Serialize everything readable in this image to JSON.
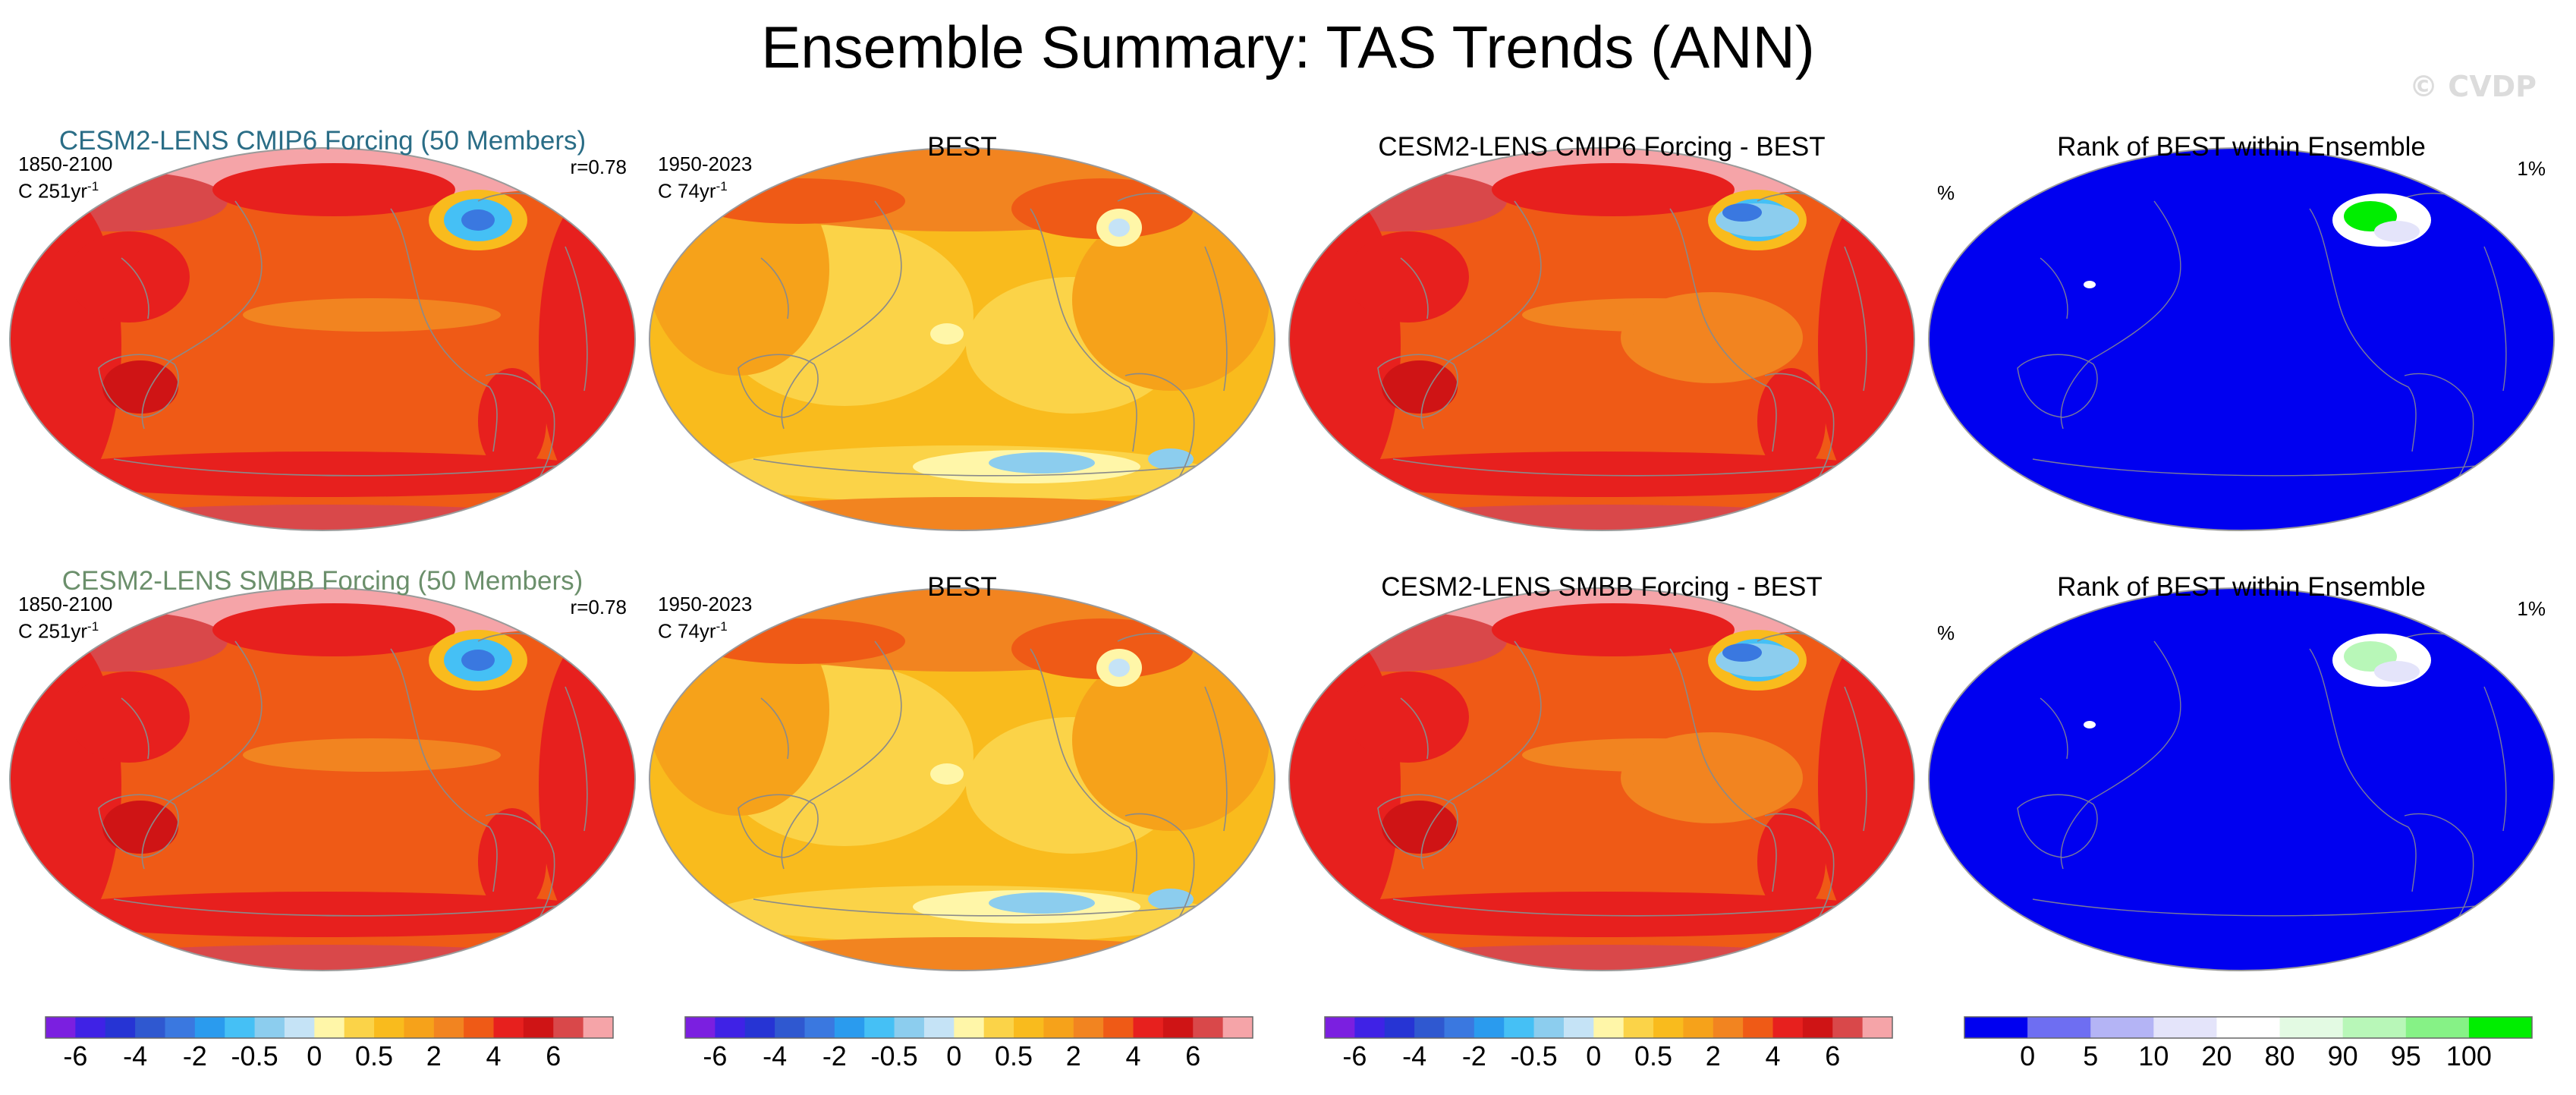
{
  "title": "Ensemble Summary: TAS Trends (ANN)",
  "watermark": "© CVDP",
  "chart_data": [
    {
      "type": "heatmap",
      "row": 1,
      "col": 1,
      "title": "CESM2-LENS CMIP6 Forcing (50 Members)",
      "title_color": "#2a6d86",
      "period": "1850-2100",
      "units_label": "C 251yr",
      "units_exp": "-1",
      "stat": "r=0.78",
      "scheme": "trend_model"
    },
    {
      "type": "heatmap",
      "row": 1,
      "col": 2,
      "title": "BEST",
      "title_color": "#000000",
      "period": "1950-2023",
      "units_label": "C 74yr",
      "units_exp": "-1",
      "stat": "",
      "scheme": "trend_obs"
    },
    {
      "type": "heatmap",
      "row": 1,
      "col": 3,
      "title": "CESM2-LENS CMIP6 Forcing - BEST",
      "title_color": "#000000",
      "period": "",
      "units_label": "",
      "units_exp": "",
      "stat": "",
      "scheme": "trend_diff"
    },
    {
      "type": "heatmap",
      "row": 1,
      "col": 4,
      "title": "Rank of BEST within Ensemble",
      "title_color": "#000000",
      "period": "%",
      "units_label": "",
      "units_exp": "",
      "stat": "1%",
      "scheme": "rank"
    },
    {
      "type": "heatmap",
      "row": 2,
      "col": 1,
      "title": "CESM2-LENS SMBB Forcing (50 Members)",
      "title_color": "#6b8f6b",
      "period": "1850-2100",
      "units_label": "C 251yr",
      "units_exp": "-1",
      "stat": "r=0.78",
      "scheme": "trend_model"
    },
    {
      "type": "heatmap",
      "row": 2,
      "col": 2,
      "title": "BEST",
      "title_color": "#000000",
      "period": "1950-2023",
      "units_label": "C 74yr",
      "units_exp": "-1",
      "stat": "",
      "scheme": "trend_obs"
    },
    {
      "type": "heatmap",
      "row": 2,
      "col": 3,
      "title": "CESM2-LENS SMBB Forcing - BEST",
      "title_color": "#000000",
      "period": "",
      "units_label": "",
      "units_exp": "",
      "stat": "",
      "scheme": "trend_diff"
    },
    {
      "type": "heatmap",
      "row": 2,
      "col": 4,
      "title": "Rank of BEST within Ensemble",
      "title_color": "#000000",
      "period": "%",
      "units_label": "",
      "units_exp": "",
      "stat": "1%",
      "scheme": "rank"
    }
  ],
  "colorbars": [
    {
      "colors": [
        "#7b1fe0",
        "#3f22e6",
        "#2634d4",
        "#2f58d0",
        "#3a78e0",
        "#2a9bee",
        "#45c0f5",
        "#8ccdee",
        "#c5e3f6",
        "#fff6a8",
        "#fbd348",
        "#f9bb1d",
        "#f6a21a",
        "#f28420",
        "#ef5a16",
        "#e7201e",
        "#cf1415",
        "#d9484a",
        "#f5a4a8"
      ],
      "tick_labels": [
        "-6",
        "-4",
        "-2",
        "-0.5",
        "0",
        "0.5",
        "2",
        "4",
        "6"
      ]
    },
    {
      "colors": [
        "#7b1fe0",
        "#3f22e6",
        "#2634d4",
        "#2f58d0",
        "#3a78e0",
        "#2a9bee",
        "#45c0f5",
        "#8ccdee",
        "#c5e3f6",
        "#fff6a8",
        "#fbd348",
        "#f9bb1d",
        "#f6a21a",
        "#f28420",
        "#ef5a16",
        "#e7201e",
        "#cf1415",
        "#d9484a",
        "#f5a4a8"
      ],
      "tick_labels": [
        "-6",
        "-4",
        "-2",
        "-0.5",
        "0",
        "0.5",
        "2",
        "4",
        "6"
      ]
    },
    {
      "colors": [
        "#7b1fe0",
        "#3f22e6",
        "#2634d4",
        "#2f58d0",
        "#3a78e0",
        "#2a9bee",
        "#45c0f5",
        "#8ccdee",
        "#c5e3f6",
        "#fff6a8",
        "#fbd348",
        "#f9bb1d",
        "#f6a21a",
        "#f28420",
        "#ef5a16",
        "#e7201e",
        "#cf1415",
        "#d9484a",
        "#f5a4a8"
      ],
      "tick_labels": [
        "-6",
        "-4",
        "-2",
        "-0.5",
        "0",
        "0.5",
        "2",
        "4",
        "6"
      ]
    },
    {
      "colors": [
        "#0000f0",
        "#6e6ef2",
        "#b4b4f5",
        "#e4e4fa",
        "#ffffff",
        "#e3fae3",
        "#b8f7b8",
        "#86f286",
        "#00ee00"
      ],
      "tick_labels": [
        "0",
        "5",
        "10",
        "20",
        "80",
        "90",
        "95",
        "100"
      ]
    }
  ]
}
